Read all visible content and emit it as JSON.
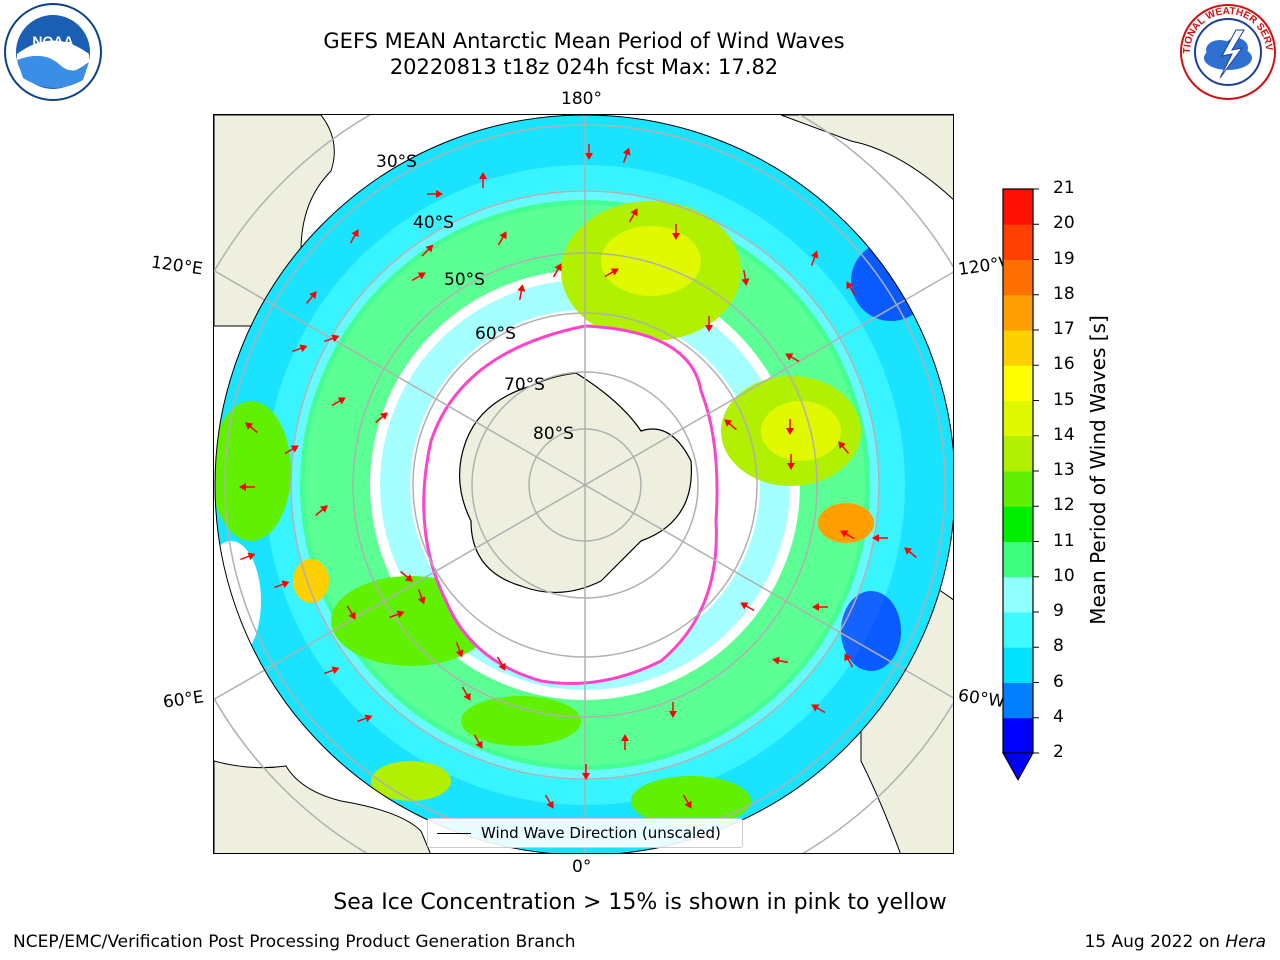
{
  "title": {
    "line1": "GEFS MEAN Antarctic Mean Period of Wind Waves",
    "line2": "20220813 t18z 024h fcst   Max: 17.82"
  },
  "logos": {
    "left_icon": "noaa-logo",
    "left_text": "NOAA",
    "left_ring_text": "NATIONAL OCEANIC AND ATMOSPHERIC ADMINISTRATION · U.S. DEPARTMENT OF COMMERCE",
    "right_icon": "nws-logo",
    "right_ring_text": "NATIONAL WEATHER SERVICE"
  },
  "map": {
    "projection": "south-polar-stereographic",
    "lon_labels": {
      "top": "180°",
      "bottom": "0°",
      "upper_left": "120°E",
      "upper_right": "120°W",
      "lower_left": "60°E",
      "lower_right": "60°W"
    },
    "lat_labels": [
      "30°S",
      "40°S",
      "50°S",
      "60°S",
      "70°S",
      "80°S"
    ],
    "legend_text": "Wind Wave Direction (unscaled)",
    "colors": {
      "land": "#efefdf",
      "sea_ice_edge": "#ff44cc",
      "arrow": "#ff0000"
    }
  },
  "colorbar": {
    "label": "Mean Period of Wind Waves [s]",
    "ticks": [
      "2",
      "4",
      "6",
      "8",
      "9",
      "10",
      "11",
      "12",
      "13",
      "14",
      "15",
      "16",
      "17",
      "18",
      "19",
      "20",
      "21"
    ],
    "colors": [
      "#0000ff",
      "#0080ff",
      "#00e0ff",
      "#40f8ff",
      "#90ffff",
      "#40ff80",
      "#00ee00",
      "#60f000",
      "#b0f000",
      "#e0f800",
      "#ffff00",
      "#ffd000",
      "#ffa000",
      "#ff7000",
      "#ff4000",
      "#ff1000"
    ],
    "under_color": "#0000ff"
  },
  "caption": "Sea Ice Concentration > 15% is shown in pink to yellow",
  "footer": {
    "left": "NCEP/EMC/Verification Post Processing Product Generation Branch",
    "right_date": "15 Aug 2022 on ",
    "right_machine": "Hera"
  }
}
